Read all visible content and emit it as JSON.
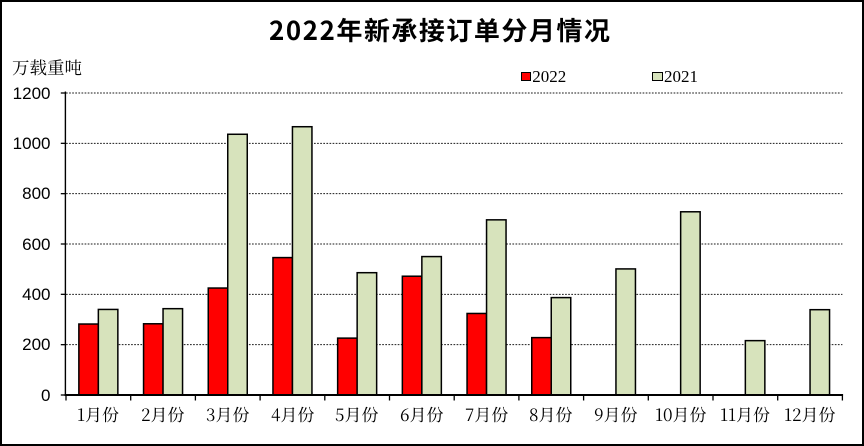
{
  "chart_data": {
    "type": "bar",
    "title": "2022年新承接订单分月情况",
    "unit_label": "万载重吨",
    "categories": [
      "1月份",
      "2月份",
      "3月份",
      "4月份",
      "5月份",
      "6月份",
      "7月份",
      "8月份",
      "9月份",
      "10月份",
      "11月份",
      "12月份"
    ],
    "series": [
      {
        "name": "2022",
        "color": "#FF0000",
        "values": [
          282,
          283,
          425,
          546,
          226,
          472,
          324,
          228,
          null,
          null,
          null,
          null
        ]
      },
      {
        "name": "2021",
        "color": "#D7E3BC",
        "values": [
          340,
          343,
          1036,
          1066,
          486,
          550,
          696,
          387,
          501,
          728,
          216,
          339
        ]
      }
    ],
    "yaxis": {
      "min": 0,
      "max": 1200,
      "step": 200,
      "tick_labels": [
        "0",
        "200",
        "400",
        "600",
        "800",
        "1000",
        "1200"
      ]
    },
    "xlabel": "",
    "ylabel": "万载重吨",
    "ylim": [
      0,
      1200
    ],
    "grid": "horizontal-dashed",
    "legend_position": "top",
    "legend": [
      {
        "label": "2022",
        "swatch_color": "#FF0000"
      },
      {
        "label": "2021",
        "swatch_color": "#D7E3BC"
      }
    ],
    "bar_outline_color": "#000000",
    "background_color": "#FFFFFF",
    "frame_color": "#000000"
  }
}
